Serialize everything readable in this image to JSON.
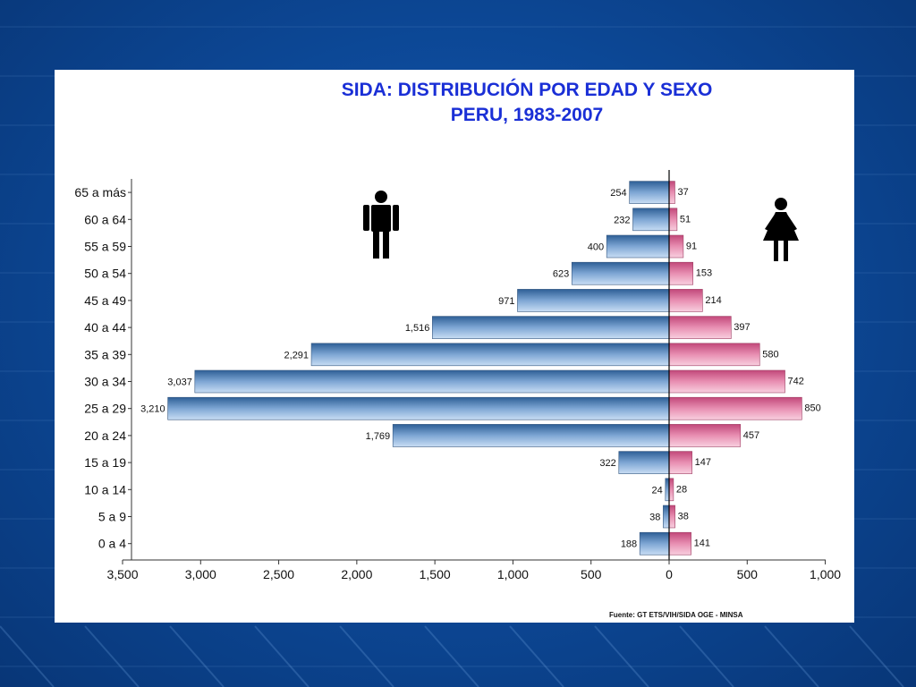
{
  "chart_data": {
    "type": "bar",
    "orientation": "horizontal-population-pyramid",
    "title": "SIDA: DISTRIBUCIÓN POR EDAD Y SEXO",
    "subtitle": "PERU, 1983-2007",
    "categories": [
      "65 a más",
      "60 a 64",
      "55 a 59",
      "50 a 54",
      "45 a 49",
      "40 a 44",
      "35 a 39",
      "30 a 34",
      "25 a 29",
      "20 a 24",
      "15 a 19",
      "10 a 14",
      "5 a 9",
      "0 a 4"
    ],
    "series": [
      {
        "side": "left",
        "values": [
          254,
          232,
          400,
          623,
          971,
          1516,
          2291,
          3037,
          3210,
          1769,
          322,
          24,
          38,
          188
        ],
        "labels": [
          "254",
          "232",
          "400",
          "623",
          "971",
          "1,516",
          "2,291",
          "3,037",
          "3,210",
          "1,769",
          "322",
          "24",
          "38",
          "188"
        ],
        "color": "#5f86b4"
      },
      {
        "side": "right",
        "values": [
          37,
          51,
          91,
          153,
          214,
          397,
          580,
          742,
          850,
          457,
          147,
          28,
          38,
          141
        ],
        "labels": [
          "37",
          "51",
          "91",
          "153",
          "214",
          "397",
          "580",
          "742",
          "850",
          "457",
          "147",
          "28",
          "38",
          "141"
        ],
        "color": "#e27fa4"
      }
    ],
    "x_ticks": [
      "3,500",
      "3,000",
      "2,500",
      "2,000",
      "1,500",
      "1,000",
      "500",
      "0",
      "500",
      "1,000"
    ],
    "xlim_left": 3500,
    "xlim_right": 1000,
    "grid": false,
    "legend": "pictograms: male figure (left), female figure (right)",
    "source": "Fuente: GT ETS/VIH/SIDA OGE - MINSA"
  },
  "colors": {
    "background": "#0d4a9a",
    "panel": "#ffffff",
    "title": "#1a2fd6",
    "male_bar": "#5f86b4",
    "female_bar": "#e27fa4"
  },
  "icons": [
    "male-figure-icon",
    "female-figure-icon"
  ]
}
